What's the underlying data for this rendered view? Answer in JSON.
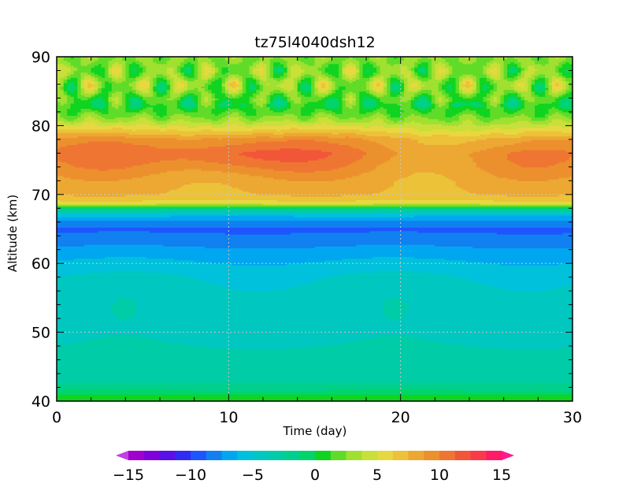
{
  "chart_data": {
    "type": "heatmap",
    "title": "tz75l4040dsh12",
    "xlabel": "Time (day)",
    "ylabel": "Altitude (km)",
    "xlim": [
      0,
      30
    ],
    "ylim": [
      40,
      90
    ],
    "x_ticks": [
      "0",
      "10",
      "20",
      "30"
    ],
    "y_ticks": [
      "40",
      "50",
      "60",
      "70",
      "80",
      "90"
    ],
    "grid": true,
    "legend": "colorbar-bottom",
    "colorbar": {
      "min": -15,
      "max": 15,
      "step": 1.25,
      "extend": "both",
      "tick_labels": [
        "−15",
        "−10",
        "−5",
        "0",
        "5",
        "10",
        "15"
      ],
      "tick_values": [
        -15,
        -10,
        -5,
        0,
        5,
        10,
        15
      ],
      "colors": [
        "#a000d0",
        "#7e00dc",
        "#5a10e8",
        "#2f2cf5",
        "#1e55ff",
        "#1180f0",
        "#00a7f0",
        "#00c1db",
        "#00c7bf",
        "#00cca7",
        "#00d08c",
        "#00d46a",
        "#10d420",
        "#60dc28",
        "#a0e030",
        "#c8e038",
        "#e8d840",
        "#ecc238",
        "#eca832",
        "#ec902e",
        "#ee7632",
        "#f25638",
        "#f83a4a",
        "#ff1a6a"
      ],
      "under_color": "#c040e0",
      "over_color": "#ff1a8a"
    },
    "profile_altitudes_km": [
      40,
      41,
      42,
      44,
      47,
      50,
      53,
      56,
      58,
      60,
      62,
      64,
      65,
      66,
      67,
      68,
      68.5,
      69,
      70,
      72,
      74,
      76,
      78,
      80,
      81,
      82,
      83,
      84,
      86,
      88,
      90
    ],
    "profile_values": [
      1,
      0,
      -2,
      -3.2,
      -3.6,
      -4,
      -4.2,
      -4.4,
      -5,
      -6,
      -7.2,
      -8.5,
      -9,
      -8,
      -6,
      -2,
      3,
      6,
      7.5,
      8,
      9,
      10,
      9,
      5,
      3,
      1.5,
      0.5,
      1.5,
      3,
      2.5,
      2.5
    ]
  }
}
